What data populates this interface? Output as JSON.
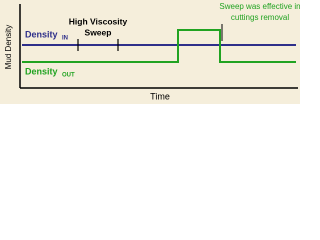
{
  "axes": {
    "y_label": "Mud Density",
    "x_label": "Time"
  },
  "density_in": {
    "text": "Density",
    "subscript": "IN"
  },
  "density_out": {
    "text": "Density",
    "subscript": "OUT"
  },
  "sweep_label": {
    "line1": "High Viscosity",
    "line2": "Sweep"
  },
  "callout": {
    "line1": "Sweep was effective in",
    "line2": "cuttings removal"
  }
}
